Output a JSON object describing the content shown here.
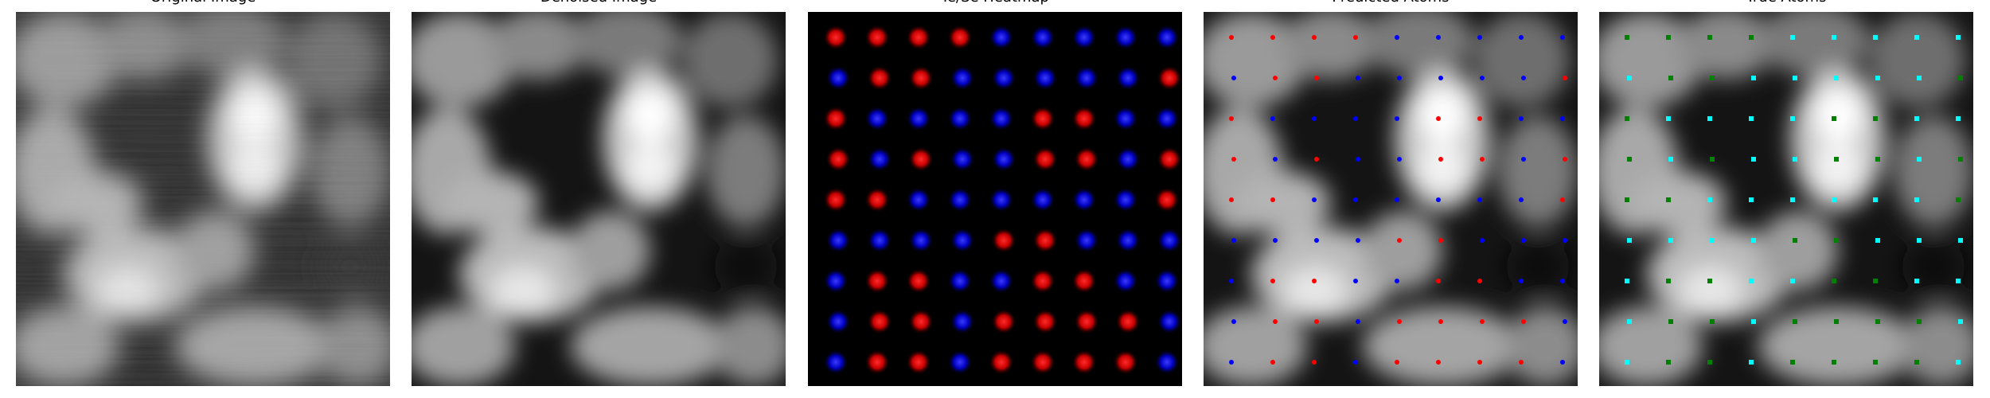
{
  "panels": [
    {
      "title": "Original Image"
    },
    {
      "title": "Denoised Image"
    },
    {
      "title": "Te/Se Heatmap"
    },
    {
      "title": "Predicted Atoms"
    },
    {
      "title": "True Atoms"
    }
  ],
  "colors": {
    "background": "#ffffff",
    "te": "#ff0000",
    "se": "#0000ff",
    "true_te": "#008000",
    "true_se": "#00ffff"
  }
}
